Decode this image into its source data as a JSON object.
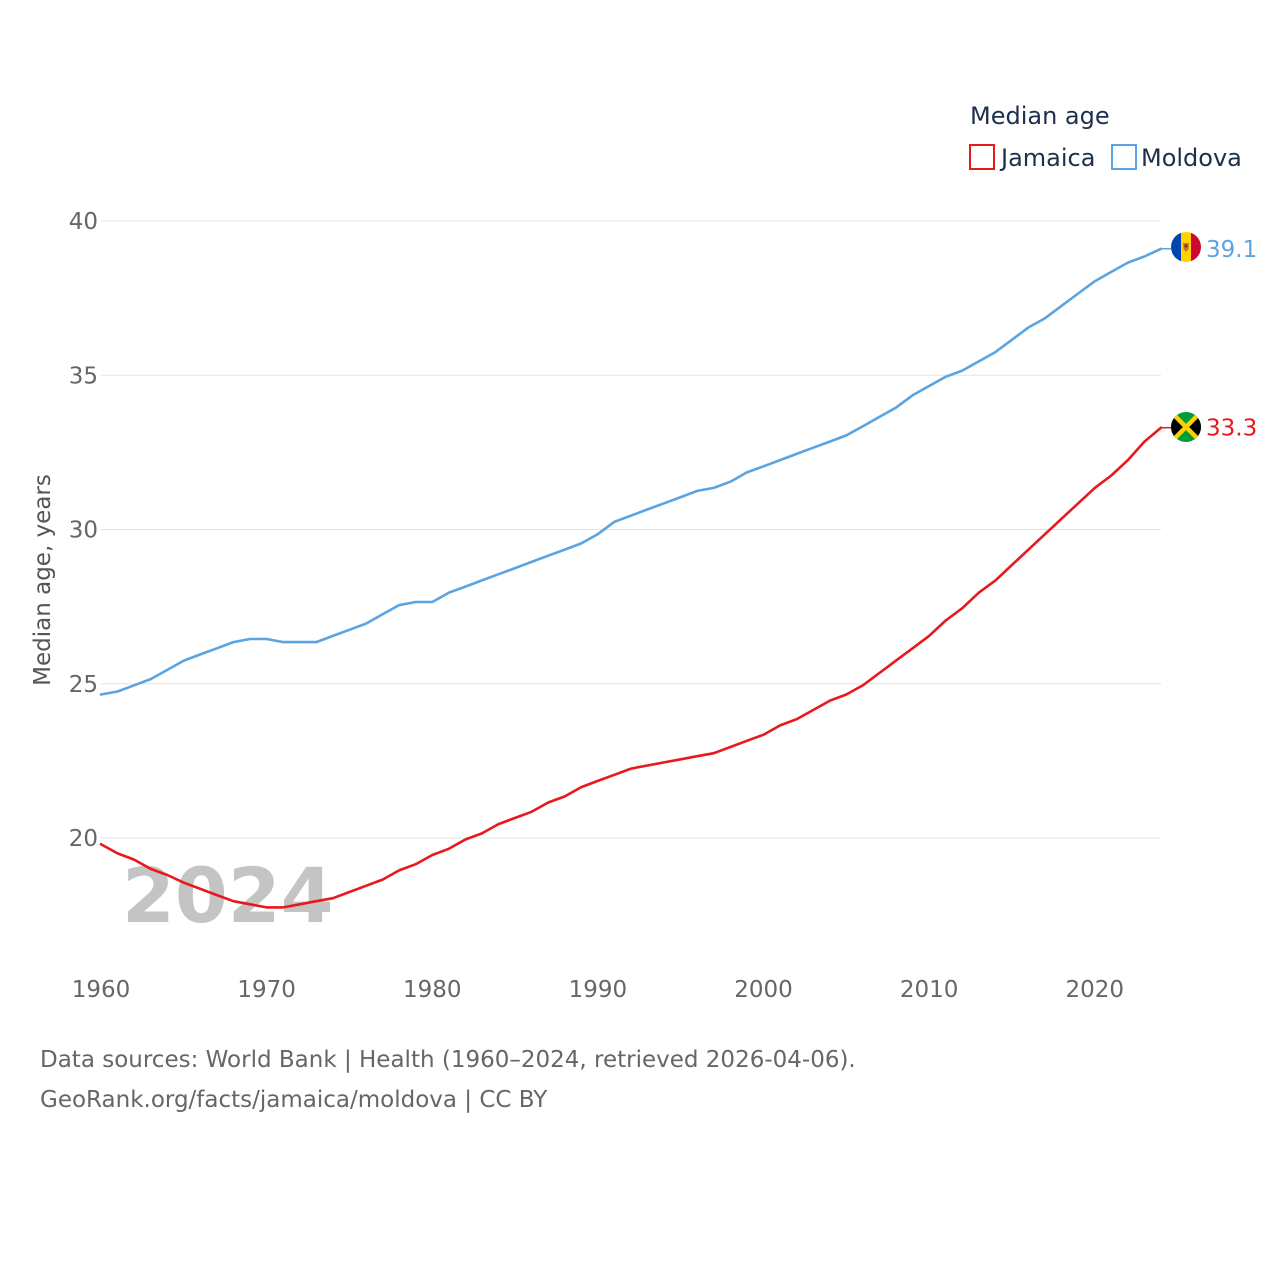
{
  "chart_data": {
    "type": "line",
    "legend_title": "Median age",
    "ylabel": "Median age, years",
    "xlabel": "",
    "xlim": [
      1960,
      2024
    ],
    "ylim": [
      16.5,
      40.5
    ],
    "y_ticks": [
      20,
      25,
      30,
      35,
      40
    ],
    "x_ticks": [
      1960,
      1970,
      1980,
      1990,
      2000,
      2010,
      2020
    ],
    "year_label": "2024",
    "legend_position": "top-right",
    "series": [
      {
        "name": "Jamaica",
        "color": "#e8191d",
        "end_label": "33.3",
        "flag_icon": "jamaica-flag-icon",
        "x": [
          1960,
          1961,
          1962,
          1963,
          1964,
          1965,
          1966,
          1967,
          1968,
          1969,
          1970,
          1971,
          1972,
          1973,
          1974,
          1975,
          1976,
          1977,
          1978,
          1979,
          1980,
          1981,
          1982,
          1983,
          1984,
          1985,
          1986,
          1987,
          1988,
          1989,
          1990,
          1991,
          1992,
          1993,
          1994,
          1995,
          1996,
          1997,
          1998,
          1999,
          2000,
          2001,
          2002,
          2003,
          2004,
          2005,
          2006,
          2007,
          2008,
          2009,
          2010,
          2011,
          2012,
          2013,
          2014,
          2015,
          2016,
          2017,
          2018,
          2019,
          2020,
          2021,
          2022,
          2023,
          2024
        ],
        "values": [
          19.8,
          19.5,
          19.3,
          19.0,
          18.8,
          18.55,
          18.35,
          18.15,
          17.95,
          17.85,
          17.75,
          17.75,
          17.85,
          17.95,
          18.05,
          18.25,
          18.45,
          18.65,
          18.95,
          19.15,
          19.45,
          19.65,
          19.95,
          20.15,
          20.45,
          20.65,
          20.85,
          21.15,
          21.35,
          21.65,
          21.85,
          22.05,
          22.25,
          22.35,
          22.45,
          22.55,
          22.65,
          22.75,
          22.95,
          23.15,
          23.35,
          23.65,
          23.85,
          24.15,
          24.45,
          24.65,
          24.95,
          25.35,
          25.75,
          26.15,
          26.55,
          27.05,
          27.45,
          27.95,
          28.35,
          28.85,
          29.35,
          29.85,
          30.35,
          30.85,
          31.35,
          31.75,
          32.25,
          32.85,
          33.3
        ]
      },
      {
        "name": "Moldova",
        "color": "#5ba4e2",
        "end_label": "39.1",
        "flag_icon": "moldova-flag-icon",
        "x": [
          1960,
          1961,
          1962,
          1963,
          1964,
          1965,
          1966,
          1967,
          1968,
          1969,
          1970,
          1971,
          1972,
          1973,
          1974,
          1975,
          1976,
          1977,
          1978,
          1979,
          1980,
          1981,
          1982,
          1983,
          1984,
          1985,
          1986,
          1987,
          1988,
          1989,
          1990,
          1991,
          1992,
          1993,
          1994,
          1995,
          1996,
          1997,
          1998,
          1999,
          2000,
          2001,
          2002,
          2003,
          2004,
          2005,
          2006,
          2007,
          2008,
          2009,
          2010,
          2011,
          2012,
          2013,
          2014,
          2015,
          2016,
          2017,
          2018,
          2019,
          2020,
          2021,
          2022,
          2023,
          2024
        ],
        "values": [
          24.65,
          24.75,
          24.95,
          25.15,
          25.45,
          25.75,
          25.95,
          26.15,
          26.35,
          26.45,
          26.45,
          26.35,
          26.35,
          26.35,
          26.55,
          26.75,
          26.95,
          27.25,
          27.55,
          27.65,
          27.65,
          27.95,
          28.15,
          28.35,
          28.55,
          28.75,
          28.95,
          29.15,
          29.35,
          29.55,
          29.85,
          30.25,
          30.45,
          30.65,
          30.85,
          31.05,
          31.25,
          31.35,
          31.55,
          31.85,
          32.05,
          32.25,
          32.45,
          32.65,
          32.85,
          33.05,
          33.35,
          33.65,
          33.95,
          34.35,
          34.65,
          34.95,
          35.15,
          35.45,
          35.75,
          36.15,
          36.55,
          36.85,
          37.25,
          37.65,
          38.05,
          38.35,
          38.65,
          38.85,
          39.1
        ]
      }
    ]
  },
  "footer": {
    "sources": "Data sources: World Bank | Health (1960–2024, retrieved 2026-04-06).",
    "credit": "GeoRank.org/facts/jamaica/moldova | CC BY"
  }
}
